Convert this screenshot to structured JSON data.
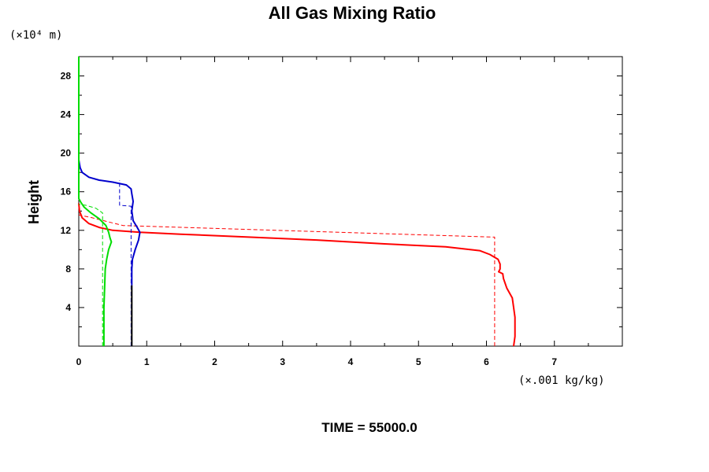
{
  "chart_data": {
    "type": "line",
    "title": "All Gas Mixing Ratio",
    "ylabel": "Height",
    "y_unit": "(×10⁴ m)",
    "x_unit": "(×.001 kg/kg)",
    "footer": "TIME = 55000.0",
    "xlim": [
      0,
      8
    ],
    "ylim": [
      0,
      30
    ],
    "x_ticks": [
      "0",
      "1",
      "2",
      "3",
      "4",
      "5",
      "6",
      "7"
    ],
    "y_ticks": [
      "4",
      "8",
      "12",
      "16",
      "20",
      "24",
      "28"
    ],
    "grid": false,
    "legend": "none",
    "series": [
      {
        "color": "#ff0000",
        "dash": "solid",
        "points": [
          [
            6.4,
            0
          ],
          [
            6.42,
            1
          ],
          [
            6.42,
            2
          ],
          [
            6.42,
            3
          ],
          [
            6.4,
            4
          ],
          [
            6.38,
            5
          ],
          [
            6.3,
            6
          ],
          [
            6.25,
            7
          ],
          [
            6.24,
            7.5
          ],
          [
            6.18,
            7.7
          ],
          [
            6.2,
            8
          ],
          [
            6.2,
            8.5
          ],
          [
            6.17,
            9
          ],
          [
            6.05,
            9.5
          ],
          [
            5.9,
            9.9
          ],
          [
            5.4,
            10.3
          ],
          [
            4.5,
            10.6
          ],
          [
            3.5,
            11
          ],
          [
            2.5,
            11.3
          ],
          [
            1.5,
            11.6
          ],
          [
            0.9,
            11.8
          ],
          [
            0.5,
            12
          ],
          [
            0.3,
            12.3
          ],
          [
            0.15,
            12.7
          ],
          [
            0.05,
            13.3
          ],
          [
            0.01,
            14
          ],
          [
            0,
            14.8
          ]
        ]
      },
      {
        "color": "#ff0000",
        "dash": "dashed",
        "points": [
          [
            6.12,
            0
          ],
          [
            6.12,
            11.3
          ],
          [
            0.65,
            12.5
          ],
          [
            0.2,
            13.3
          ],
          [
            0,
            13.6
          ]
        ]
      },
      {
        "color": "#0000cc",
        "dash": "solid",
        "points": [
          [
            0.78,
            6.3
          ],
          [
            0.78,
            8
          ],
          [
            0.79,
            9
          ],
          [
            0.83,
            10
          ],
          [
            0.88,
            11
          ],
          [
            0.9,
            11.8
          ],
          [
            0.86,
            12.3
          ],
          [
            0.8,
            13
          ],
          [
            0.78,
            14
          ],
          [
            0.8,
            15
          ],
          [
            0.78,
            15.8
          ],
          [
            0.77,
            16.3
          ],
          [
            0.7,
            16.7
          ],
          [
            0.5,
            17
          ],
          [
            0.3,
            17.2
          ],
          [
            0.15,
            17.5
          ],
          [
            0.05,
            18
          ],
          [
            0.02,
            18.5
          ],
          [
            0,
            19.3
          ]
        ]
      },
      {
        "color": "#0000cc",
        "dash": "dashed",
        "points": [
          [
            0.77,
            0
          ],
          [
            0.77,
            14.5
          ],
          [
            0.6,
            14.6
          ],
          [
            0.6,
            17.2
          ]
        ]
      },
      {
        "color": "#000000",
        "dash": "solid",
        "points": [
          [
            0.78,
            0
          ],
          [
            0.78,
            6.3
          ]
        ]
      },
      {
        "color": "#00dd00",
        "dash": "solid",
        "points": [
          [
            0.37,
            0
          ],
          [
            0.37,
            4
          ],
          [
            0.38,
            6
          ],
          [
            0.39,
            8
          ],
          [
            0.41,
            9
          ],
          [
            0.44,
            10
          ],
          [
            0.48,
            10.8
          ],
          [
            0.46,
            11.2
          ],
          [
            0.44,
            11.8
          ],
          [
            0.4,
            12.5
          ],
          [
            0.3,
            13.2
          ],
          [
            0.18,
            13.8
          ],
          [
            0.08,
            14.4
          ],
          [
            0.03,
            14.9
          ],
          [
            0,
            15.3
          ],
          [
            0,
            30
          ]
        ]
      },
      {
        "color": "#00dd00",
        "dash": "dashed",
        "points": [
          [
            0.35,
            0
          ],
          [
            0.35,
            13.8
          ],
          [
            0.25,
            14.3
          ],
          [
            0.1,
            14.6
          ],
          [
            0,
            14.7
          ]
        ]
      }
    ]
  }
}
